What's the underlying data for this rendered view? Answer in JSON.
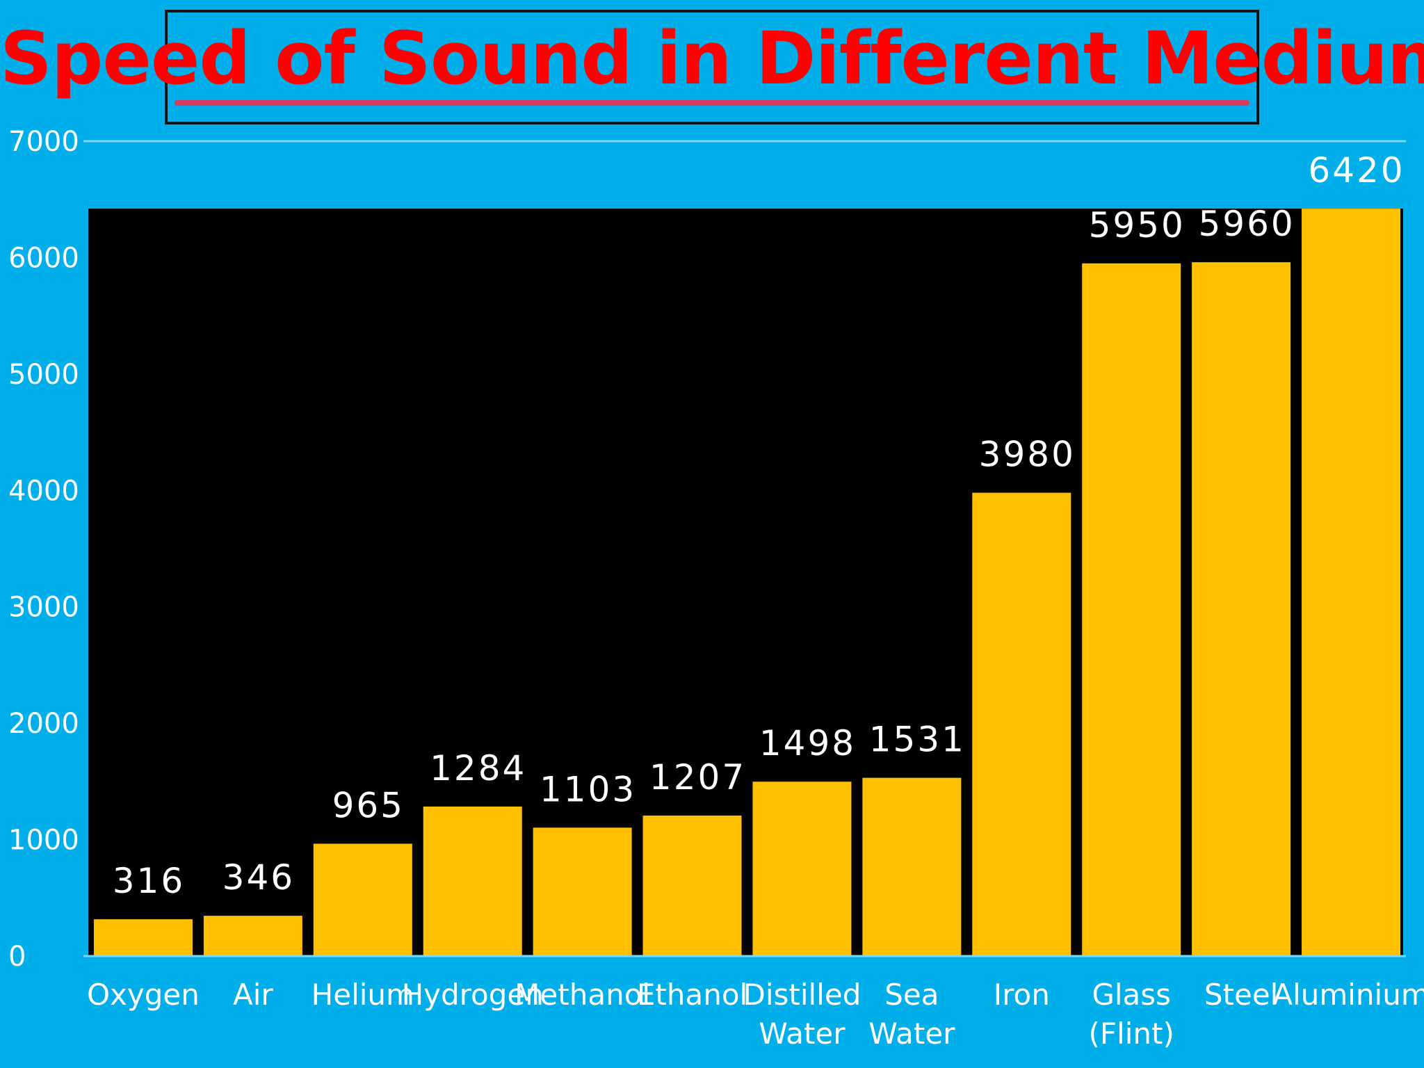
{
  "chart_data": {
    "type": "bar",
    "title": "Speed of Sound in Different Medium",
    "xlabel": "",
    "ylabel": "",
    "ylim": [
      0,
      7000
    ],
    "yticks": [
      "0",
      "1000",
      "2000",
      "3000",
      "4000",
      "5000",
      "6000",
      "7000"
    ],
    "categories": [
      "Oxygen",
      "Air",
      "Helium",
      "Hydrogen",
      "Methanol",
      "Ethanol",
      "Distilled Water",
      "Sea Water",
      "Iron",
      "Glass (Flint)",
      "Steel",
      "Aluminium"
    ],
    "values": [
      316,
      346,
      965,
      1284,
      1103,
      1207,
      1498,
      1531,
      3980,
      5950,
      5960,
      6420
    ],
    "data_labels": [
      "316",
      "346",
      "965",
      "1284",
      "1103",
      "1207",
      "1498",
      "1531",
      "3980",
      "5950",
      "5960",
      "6420"
    ],
    "grid": false,
    "legend": "none"
  },
  "colors": {
    "background": "#00aeea",
    "plot_area": "#000000",
    "bar": "#ffc000",
    "title": "#ff0000",
    "text": "#ffffff"
  }
}
